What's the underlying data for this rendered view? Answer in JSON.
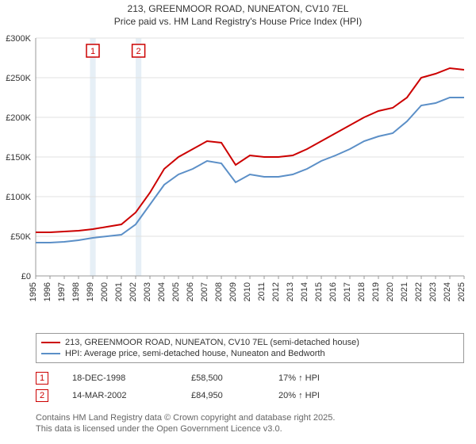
{
  "title_line1": "213, GREENMOOR ROAD, NUNEATON, CV10 7EL",
  "title_line2": "Price paid vs. HM Land Registry's House Price Index (HPI)",
  "chart": {
    "type": "line",
    "background_color": "#ffffff",
    "grid_color": "#e0e0e0",
    "axis_color": "#999999",
    "text_color": "#333333",
    "label_fontsize": 11,
    "x_years": [
      1995,
      1996,
      1997,
      1998,
      1999,
      2000,
      2001,
      2002,
      2003,
      2004,
      2005,
      2006,
      2007,
      2008,
      2009,
      2010,
      2011,
      2012,
      2013,
      2014,
      2015,
      2016,
      2017,
      2018,
      2019,
      2020,
      2021,
      2022,
      2023,
      2024,
      2025
    ],
    "xlim": [
      1995,
      2025
    ],
    "ylim": [
      0,
      300000
    ],
    "ytick_step": 50000,
    "ytick_labels": [
      "£0",
      "£50K",
      "£100K",
      "£150K",
      "£200K",
      "£250K",
      "£300K"
    ],
    "highlight_bands": [
      {
        "start": 1998.8,
        "end": 1999.2
      },
      {
        "start": 2002.0,
        "end": 2002.4
      }
    ],
    "series": [
      {
        "name": "price_paid",
        "color": "#cc0000",
        "line_width": 2,
        "values_by_year": {
          "1995": 55000,
          "1996": 55000,
          "1997": 56000,
          "1998": 57000,
          "1999": 59000,
          "2000": 62000,
          "2001": 65000,
          "2002": 80000,
          "2003": 105000,
          "2004": 135000,
          "2005": 150000,
          "2006": 160000,
          "2007": 170000,
          "2008": 168000,
          "2009": 140000,
          "2010": 152000,
          "2011": 150000,
          "2012": 150000,
          "2013": 152000,
          "2014": 160000,
          "2015": 170000,
          "2016": 180000,
          "2017": 190000,
          "2018": 200000,
          "2019": 208000,
          "2020": 212000,
          "2021": 225000,
          "2022": 250000,
          "2023": 255000,
          "2024": 262000,
          "2025": 260000
        }
      },
      {
        "name": "hpi",
        "color": "#5b8fc7",
        "line_width": 2,
        "values_by_year": {
          "1995": 42000,
          "1996": 42000,
          "1997": 43000,
          "1998": 45000,
          "1999": 48000,
          "2000": 50000,
          "2001": 52000,
          "2002": 65000,
          "2003": 90000,
          "2004": 115000,
          "2005": 128000,
          "2006": 135000,
          "2007": 145000,
          "2008": 142000,
          "2009": 118000,
          "2010": 128000,
          "2011": 125000,
          "2012": 125000,
          "2013": 128000,
          "2014": 135000,
          "2015": 145000,
          "2016": 152000,
          "2017": 160000,
          "2018": 170000,
          "2019": 176000,
          "2020": 180000,
          "2021": 195000,
          "2022": 215000,
          "2023": 218000,
          "2024": 225000,
          "2025": 225000
        }
      }
    ],
    "markers": [
      {
        "id": "1",
        "year": 1999.0,
        "color": "#cc0000"
      },
      {
        "id": "2",
        "year": 2002.2,
        "color": "#cc0000"
      }
    ]
  },
  "legend": {
    "border_color": "#999999",
    "items": [
      {
        "color": "#cc0000",
        "label": "213, GREENMOOR ROAD, NUNEATON, CV10 7EL (semi-detached house)"
      },
      {
        "color": "#5b8fc7",
        "label": "HPI: Average price, semi-detached house, Nuneaton and Bedworth"
      }
    ]
  },
  "transactions": [
    {
      "id": "1",
      "marker_color": "#cc0000",
      "date": "18-DEC-1998",
      "price": "£58,500",
      "delta": "17% ↑ HPI"
    },
    {
      "id": "2",
      "marker_color": "#cc0000",
      "date": "14-MAR-2002",
      "price": "£84,950",
      "delta": "20% ↑ HPI"
    }
  ],
  "footer_line1": "Contains HM Land Registry data © Crown copyright and database right 2025.",
  "footer_line2": "This data is licensed under the Open Government Licence v3.0."
}
